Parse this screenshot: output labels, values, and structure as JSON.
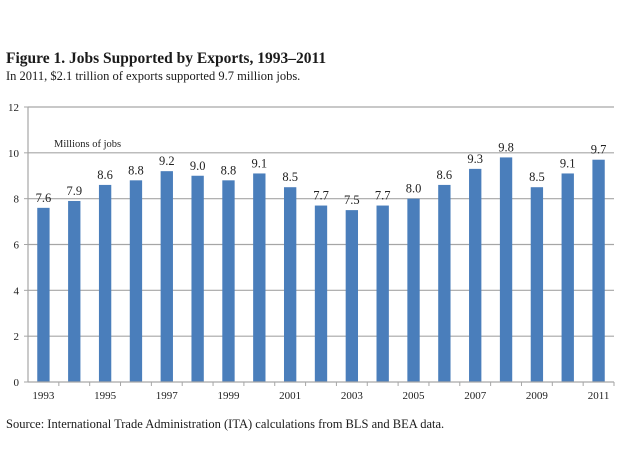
{
  "chart_data": {
    "type": "bar",
    "title": "Figure 1. Jobs Supported by Exports, 1993–2011",
    "subtitle": "In 2011, $2.1 trillion of exports supported 9.7 million jobs.",
    "ylabel": "Millions of jobs",
    "xlabel": "",
    "source": "Source: International Trade Administration (ITA) calculations from BLS and BEA data.",
    "categories": [
      "1993",
      "1994",
      "1995",
      "1996",
      "1997",
      "1998",
      "1999",
      "2000",
      "2001",
      "2002",
      "2003",
      "2004",
      "2005",
      "2006",
      "2007",
      "2008",
      "2009",
      "2010",
      "2011"
    ],
    "values": [
      7.6,
      7.9,
      8.6,
      8.8,
      9.2,
      9.0,
      8.8,
      9.1,
      8.5,
      7.7,
      7.5,
      7.7,
      8.0,
      8.6,
      9.3,
      9.8,
      8.5,
      9.1,
      9.7
    ],
    "data_labels": [
      "7.6",
      "7.9",
      "8.6",
      "8.8",
      "9.2",
      "9.0",
      "8.8",
      "9.1",
      "8.5",
      "7.7",
      "7.5",
      "7.7",
      "8.0",
      "8.6",
      "9.3",
      "9.8",
      "8.5",
      "9.1",
      "9.7"
    ],
    "x_tick_labels": [
      "1993",
      "",
      "1995",
      "",
      "1997",
      "",
      "1999",
      "",
      "2001",
      "",
      "2003",
      "",
      "2005",
      "",
      "2007",
      "",
      "2009",
      "",
      "2011"
    ],
    "y_ticks": [
      0,
      2,
      4,
      6,
      8,
      10,
      12
    ],
    "y_tick_labels": [
      "0",
      "2",
      "4",
      "6",
      "8",
      "10",
      "12"
    ],
    "ylim": [
      0,
      12
    ],
    "grid": true,
    "legend": "none",
    "bar_color": "#4a7ebb",
    "grid_color": "#a6a6a6"
  }
}
